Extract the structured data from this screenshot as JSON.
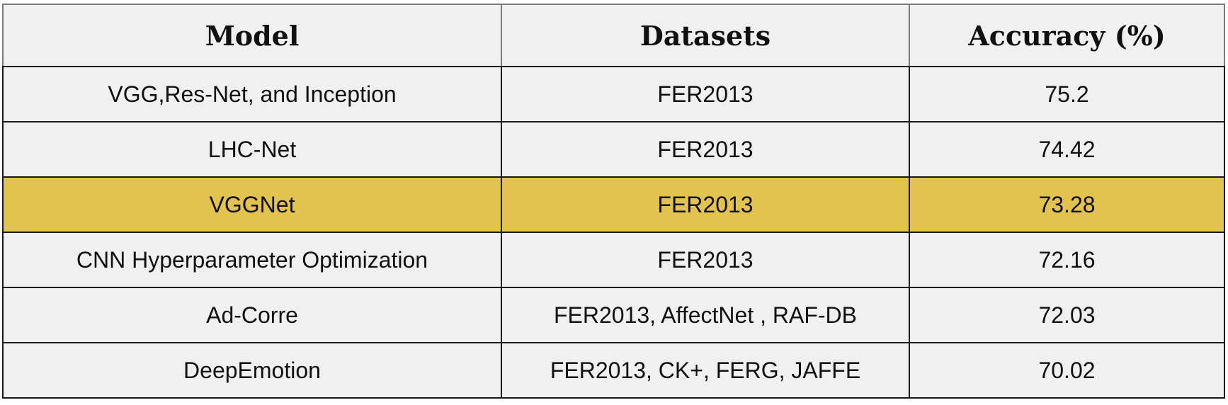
{
  "table": {
    "headers": [
      "Model",
      "Datasets",
      "Accuracy (%)"
    ],
    "highlight_color": "#e3c34f",
    "rows": [
      {
        "model": "VGG,Res-Net, and Inception",
        "datasets": "FER2013",
        "accuracy": "75.2",
        "highlighted": false
      },
      {
        "model": "LHC-Net",
        "datasets": "FER2013",
        "accuracy": "74.42",
        "highlighted": false
      },
      {
        "model": "VGGNet",
        "datasets": "FER2013",
        "accuracy": "73.28",
        "highlighted": true
      },
      {
        "model": "CNN Hyperparameter Optimization",
        "datasets": "FER2013",
        "accuracy": "72.16",
        "highlighted": false
      },
      {
        "model": "Ad-Corre",
        "datasets": "FER2013, AffectNet , RAF-DB",
        "accuracy": "72.03",
        "highlighted": false
      },
      {
        "model": "DeepEmotion",
        "datasets": "FER2013, CK+, FERG, JAFFE",
        "accuracy": "70.02",
        "highlighted": false
      }
    ]
  }
}
